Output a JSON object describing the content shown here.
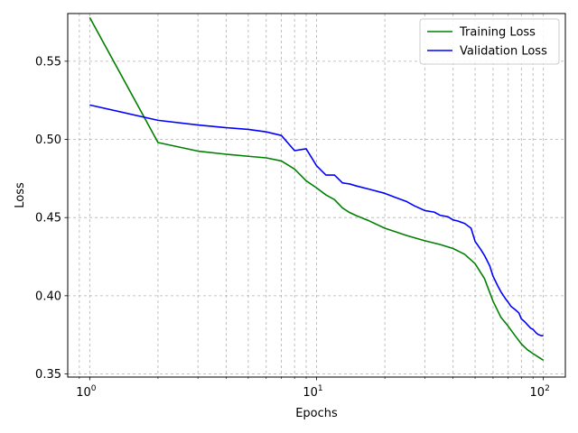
{
  "chart_data": {
    "type": "line",
    "xlabel": "Epochs",
    "ylabel": "Loss",
    "xscale": "log",
    "xlim": [
      0.8,
      125
    ],
    "ylim": [
      0.348,
      0.5805
    ],
    "grid": true,
    "grid_style": "dashed",
    "legend_position": "top-right",
    "x_ticks": [
      {
        "value": 1,
        "base": "10",
        "exp": "0"
      },
      {
        "value": 10,
        "base": "10",
        "exp": "1"
      },
      {
        "value": 100,
        "base": "10",
        "exp": "2"
      }
    ],
    "y_ticks": [
      0.35,
      0.4,
      0.45,
      0.5,
      0.55
    ],
    "y_tick_labels": [
      "0.35",
      "0.40",
      "0.45",
      "0.50",
      "0.55"
    ],
    "series": [
      {
        "name": "Training Loss",
        "color": "#008000",
        "points": [
          [
            1,
            0.578
          ],
          [
            2,
            0.498
          ],
          [
            3,
            0.4925
          ],
          [
            4,
            0.4905
          ],
          [
            5,
            0.4892
          ],
          [
            6,
            0.4882
          ],
          [
            7,
            0.4862
          ],
          [
            8,
            0.481
          ],
          [
            9,
            0.4735
          ],
          [
            10,
            0.469
          ],
          [
            11,
            0.4645
          ],
          [
            12,
            0.4615
          ],
          [
            13,
            0.4562
          ],
          [
            14,
            0.4532
          ],
          [
            15,
            0.4512
          ],
          [
            17,
            0.448
          ],
          [
            20,
            0.4432
          ],
          [
            25,
            0.4385
          ],
          [
            30,
            0.4352
          ],
          [
            35,
            0.4328
          ],
          [
            40,
            0.4302
          ],
          [
            45,
            0.4265
          ],
          [
            50,
            0.4205
          ],
          [
            55,
            0.411
          ],
          [
            60,
            0.3965
          ],
          [
            65,
            0.3862
          ],
          [
            70,
            0.3805
          ],
          [
            75,
            0.3745
          ],
          [
            80,
            0.3692
          ],
          [
            85,
            0.3655
          ],
          [
            90,
            0.363
          ],
          [
            95,
            0.3608
          ],
          [
            100,
            0.3588
          ]
        ]
      },
      {
        "name": "Validation Loss",
        "color": "#0000ff",
        "points": [
          [
            1,
            0.522
          ],
          [
            2,
            0.5122
          ],
          [
            3,
            0.5092
          ],
          [
            4,
            0.5075
          ],
          [
            5,
            0.5064
          ],
          [
            6,
            0.5048
          ],
          [
            7,
            0.5025
          ],
          [
            8,
            0.4928
          ],
          [
            9,
            0.494
          ],
          [
            10,
            0.4832
          ],
          [
            11,
            0.4772
          ],
          [
            12,
            0.4772
          ],
          [
            13,
            0.4722
          ],
          [
            14,
            0.4715
          ],
          [
            15,
            0.4702
          ],
          [
            17,
            0.4682
          ],
          [
            20,
            0.4655
          ],
          [
            22,
            0.4632
          ],
          [
            25,
            0.4602
          ],
          [
            27,
            0.4575
          ],
          [
            30,
            0.4545
          ],
          [
            33,
            0.4535
          ],
          [
            35,
            0.4515
          ],
          [
            38,
            0.4505
          ],
          [
            40,
            0.4485
          ],
          [
            42,
            0.4478
          ],
          [
            45,
            0.4462
          ],
          [
            48,
            0.4432
          ],
          [
            50,
            0.4348
          ],
          [
            53,
            0.4295
          ],
          [
            55,
            0.4258
          ],
          [
            58,
            0.4192
          ],
          [
            60,
            0.4125
          ],
          [
            63,
            0.4062
          ],
          [
            65,
            0.4025
          ],
          [
            68,
            0.3982
          ],
          [
            70,
            0.3958
          ],
          [
            72,
            0.3932
          ],
          [
            75,
            0.3912
          ],
          [
            78,
            0.389
          ],
          [
            80,
            0.3852
          ],
          [
            83,
            0.3832
          ],
          [
            85,
            0.3815
          ],
          [
            88,
            0.3792
          ],
          [
            90,
            0.3785
          ],
          [
            93,
            0.3762
          ],
          [
            95,
            0.3752
          ],
          [
            98,
            0.3745
          ],
          [
            100,
            0.3745
          ]
        ]
      }
    ]
  }
}
